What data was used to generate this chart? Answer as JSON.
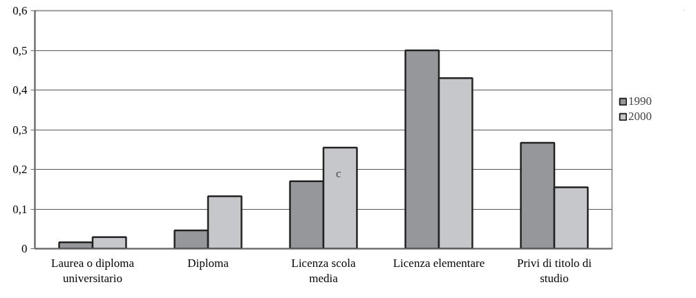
{
  "chart_data": {
    "type": "bar",
    "categories": [
      "Laurea o diploma universitario",
      "Diploma",
      "Licenza scola media",
      "Licenza elementare",
      "Privi di titolo di studio"
    ],
    "series": [
      {
        "name": "1990",
        "color": "#96979b",
        "values": [
          0.016,
          0.046,
          0.17,
          0.5,
          0.267
        ]
      },
      {
        "name": "2000",
        "color": "#c6c7ca",
        "values": [
          0.029,
          0.132,
          0.255,
          0.43,
          0.155
        ]
      }
    ],
    "ylim": [
      0,
      0.6
    ],
    "yticks": [
      0,
      {
        "value": 0.1,
        "label": "0,1"
      },
      {
        "value": 0.2,
        "label": "0,2"
      },
      {
        "value": 0.3,
        "label": "0,3"
      },
      {
        "value": 0.4,
        "label": "0,4"
      },
      {
        "value": 0.5,
        "label": "0,5"
      },
      {
        "value": 0.6,
        "label": "0,6"
      }
    ],
    "grid": "y",
    "legend": "right",
    "annotations": [
      {
        "text": "c",
        "x": "Licenza scola media",
        "y": 0.19
      }
    ]
  }
}
